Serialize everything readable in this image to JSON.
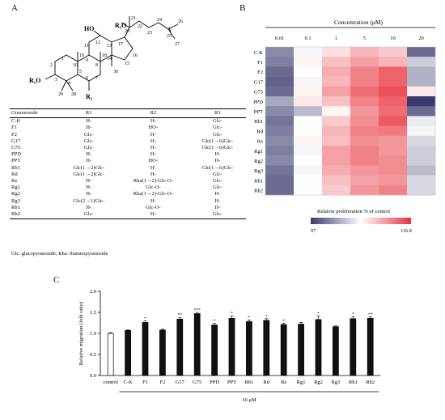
{
  "panels": {
    "a": "A",
    "b": "B",
    "c": "C"
  },
  "structure": {
    "substituents": {
      "r1": "R₁O",
      "r2": "R₂",
      "r3": "R₃O",
      "ho": "HO"
    },
    "atom_numbers": [
      "1",
      "2",
      "3",
      "4",
      "5",
      "6",
      "7",
      "8",
      "9",
      "10",
      "11",
      "12",
      "13",
      "14",
      "15",
      "16",
      "17",
      "18",
      "19",
      "20",
      "21",
      "22",
      "23",
      "24",
      "25",
      "26",
      "27",
      "28",
      "29",
      "30"
    ]
  },
  "table": {
    "headers": [
      "Ginsenoside",
      "R1",
      "R2",
      "R3"
    ],
    "rows": [
      [
        "C-K",
        "H-",
        "H-",
        "Glc-"
      ],
      [
        "F1",
        "H-",
        "HO-",
        "Glc-"
      ],
      [
        "F2",
        "Glc-",
        "H-",
        "Glc-"
      ],
      [
        "G17",
        "Glc-",
        "H-",
        "Glc(1→6)Glc-"
      ],
      [
        "G75",
        "Glc-",
        "H-",
        "Glc(1→6)Glc-"
      ],
      [
        "PPD",
        "H-",
        "H-",
        "H-"
      ],
      [
        "PPT",
        "H-",
        "HO-",
        "H-"
      ],
      [
        "Rb1",
        "Glc(1→2)Glc-",
        "H-",
        "Glc(1→6)Glc-"
      ],
      [
        "Rd",
        "Glc(1→2)Glc-",
        "H-",
        "Glc-"
      ],
      [
        "Re",
        "H-",
        "Rha(1→2)-Glc-O-",
        "Glc-"
      ],
      [
        "Rg1",
        "H-",
        "Glc-O-",
        "Glc-"
      ],
      [
        "Rg2",
        "H-",
        "Rha(1→2)-Glc-O-",
        "H-"
      ],
      [
        "Rg3",
        "Glc(2→1)Glc-",
        "H-",
        "H-"
      ],
      [
        "Rh1",
        "H-",
        "Glc-O-",
        "H-"
      ],
      [
        "Rh2",
        "Glc-",
        "H-",
        "Glc-"
      ]
    ],
    "footnote": "Glc: glucopyranoside; Rha: rhamnopyranoside"
  },
  "chart_data": [
    {
      "type": "heatmap",
      "title": "Concentration (μM)",
      "x": [
        "0.01",
        "0.1",
        "1",
        "5",
        "10",
        "20"
      ],
      "y": [
        "C-K",
        "F1",
        "F2",
        "G17",
        "G75",
        "PPD",
        "PPT",
        "Rb1",
        "Rd",
        "Re",
        "Rg1",
        "Rg2",
        "Rg3",
        "Rh1",
        "Rh2"
      ],
      "values": [
        [
          105,
          116,
          120,
          124,
          122,
          102
        ],
        [
          104,
          118,
          123,
          126,
          124,
          112
        ],
        [
          102,
          117,
          125,
          129,
          132,
          109
        ],
        [
          101,
          116,
          124,
          129,
          132,
          109
        ],
        [
          102,
          118,
          126,
          131,
          134,
          119
        ],
        [
          108,
          119,
          123,
          129,
          132,
          97
        ],
        [
          105,
          110,
          118,
          127,
          131,
          102
        ],
        [
          103,
          117,
          122,
          128,
          133,
          115
        ],
        [
          104,
          117,
          124,
          129,
          130,
          116
        ],
        [
          105,
          118,
          123,
          128,
          127,
          113
        ],
        [
          104,
          116,
          126,
          129,
          127,
          112
        ],
        [
          105,
          117,
          126,
          129,
          128,
          112
        ],
        [
          103,
          116,
          125,
          127,
          128,
          110
        ],
        [
          102,
          117,
          123,
          126,
          127,
          113
        ],
        [
          102,
          117,
          122,
          127,
          129,
          113
        ]
      ],
      "colorbar": {
        "label": "Relatvie proliferation % of control",
        "min": "97",
        "max": "136.8",
        "colors": [
          "#3a3a6e",
          "#ffffff",
          "#e8323c"
        ]
      }
    },
    {
      "type": "bar",
      "categories": [
        "control",
        "C-K",
        "F1",
        "F2",
        "G17",
        "G75",
        "PPD",
        "PPT",
        "Rb1",
        "Rd",
        "Re",
        "Rg1",
        "Rg2",
        "Rg3",
        "Rh1",
        "Rh2"
      ],
      "values": [
        1.0,
        1.07,
        1.26,
        1.08,
        1.34,
        1.47,
        1.2,
        1.36,
        1.28,
        1.31,
        1.21,
        1.22,
        1.33,
        1.16,
        1.35,
        1.36
      ],
      "errors": [
        0.02,
        0.02,
        0.04,
        0.02,
        0.04,
        0.03,
        0.04,
        0.06,
        0.04,
        0.04,
        0.03,
        0.04,
        0.08,
        0.02,
        0.05,
        0.03
      ],
      "significance": [
        "",
        "",
        "*",
        "",
        "**",
        "***",
        "*",
        "*",
        "*",
        "*",
        "*",
        "",
        "*",
        "",
        "*",
        "**"
      ],
      "bar_colors": {
        "control": "#ffffff",
        "treated": "#111111"
      },
      "ylabel": "Relative migration (fold ratio)",
      "ylim": [
        0,
        2
      ],
      "yticks": [
        "0.0",
        "0.5",
        "1.0",
        "1.5",
        "2.0"
      ],
      "group_label": "10 μM"
    }
  ]
}
